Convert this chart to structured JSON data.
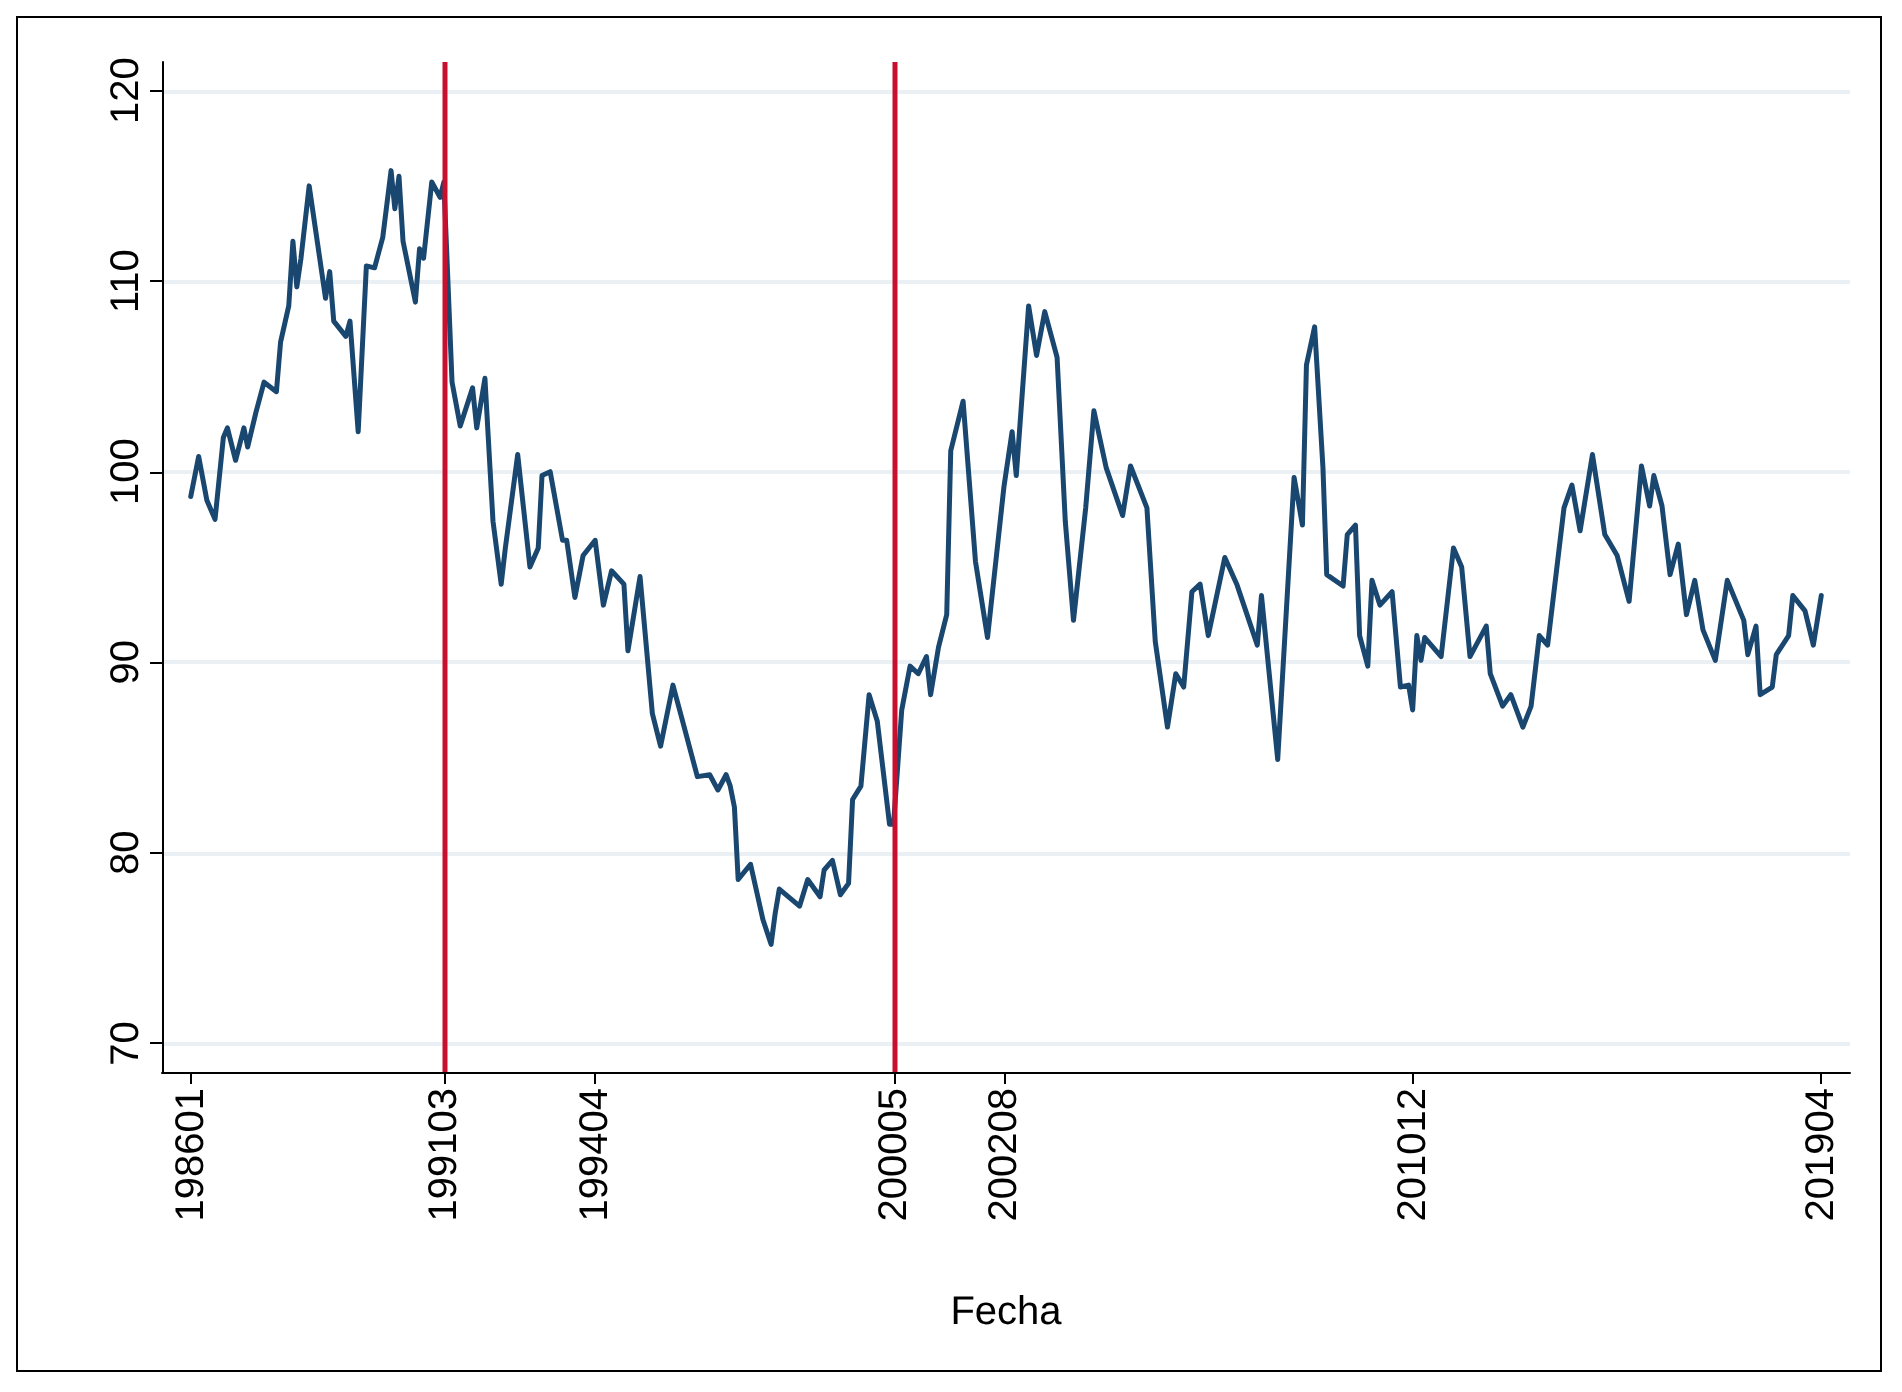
{
  "chart_data": {
    "type": "line",
    "xlabel": "Fecha",
    "x": [
      "1986-01",
      "1986-03",
      "1986-05",
      "1986-07",
      "1986-09",
      "1986-10",
      "1986-12",
      "1987-02",
      "1987-03",
      "1987-05",
      "1987-07",
      "1987-10",
      "1987-11",
      "1988-01",
      "1988-02",
      "1988-03",
      "1988-04",
      "1988-06",
      "1988-10",
      "1988-11",
      "1988-12",
      "1989-03",
      "1989-04",
      "1989-06",
      "1989-08",
      "1989-10",
      "1989-12",
      "1990-02",
      "1990-03",
      "1990-04",
      "1990-05",
      "1990-08",
      "1990-09",
      "1990-10",
      "1990-12",
      "1991-02",
      "1991-03",
      "1991-05",
      "1991-07",
      "1991-10",
      "1991-11",
      "1992-01",
      "1992-03",
      "1992-05",
      "1992-06",
      "1992-09",
      "1992-12",
      "1993-02",
      "1993-03",
      "1993-05",
      "1993-08",
      "1993-09",
      "1993-11",
      "1994-01",
      "1994-04",
      "1994-06",
      "1994-08",
      "1994-11",
      "1994-12",
      "1995-03",
      "1995-06",
      "1995-08",
      "1995-11",
      "1996-01",
      "1996-05",
      "1996-08",
      "1996-10",
      "1996-12",
      "1997-01",
      "1997-02",
      "1997-03",
      "1997-06",
      "1997-09",
      "1997-11",
      "1997-12",
      "1998-01",
      "1998-06",
      "1998-08",
      "1998-11",
      "1998-12",
      "1999-02",
      "1999-04",
      "1999-06",
      "1999-07",
      "1999-09",
      "1999-11",
      "2000-01",
      "2000-04",
      "2000-05",
      "2000-07",
      "2000-09",
      "2000-11",
      "2001-01",
      "2001-02",
      "2001-04",
      "2001-06",
      "2001-07",
      "2001-10",
      "2002-01",
      "2002-04",
      "2002-08",
      "2002-10",
      "2002-11",
      "2003-02",
      "2003-04",
      "2003-06",
      "2003-09",
      "2003-11",
      "2004-01",
      "2004-04",
      "2004-06",
      "2004-09",
      "2005-01",
      "2005-03",
      "2005-07",
      "2005-09",
      "2005-12",
      "2006-02",
      "2006-04",
      "2006-06",
      "2006-08",
      "2006-10",
      "2007-02",
      "2007-05",
      "2007-10",
      "2007-11",
      "2008-03",
      "2008-07",
      "2008-09",
      "2008-10",
      "2008-12",
      "2009-02",
      "2009-03",
      "2009-07",
      "2009-08",
      "2009-10",
      "2009-11",
      "2010-01",
      "2010-02",
      "2010-04",
      "2010-07",
      "2010-09",
      "2010-11",
      "2010-12",
      "2011-01",
      "2011-02",
      "2011-03",
      "2011-07",
      "2011-10",
      "2011-12",
      "2012-02",
      "2012-06",
      "2012-07",
      "2012-10",
      "2012-12",
      "2013-03",
      "2013-05",
      "2013-07",
      "2013-09",
      "2014-01",
      "2014-03",
      "2014-05",
      "2014-08",
      "2014-11",
      "2015-02",
      "2015-05",
      "2015-08",
      "2015-10",
      "2015-11",
      "2016-01",
      "2016-03",
      "2016-05",
      "2016-07",
      "2016-09",
      "2016-11",
      "2017-02",
      "2017-05",
      "2017-09",
      "2017-10",
      "2017-12",
      "2018-01",
      "2018-04",
      "2018-05",
      "2018-08",
      "2018-09",
      "2018-12",
      "2019-02",
      "2019-04"
    ],
    "series": [
      {
        "color": "#1a476f",
        "values": [
          98.7,
          100.8,
          98.5,
          97.5,
          101.8,
          102.3,
          100.6,
          102.3,
          101.3,
          103.1,
          104.7,
          104.2,
          106.8,
          108.7,
          112.1,
          109.7,
          111.2,
          115.0,
          109.1,
          110.5,
          107.9,
          107.1,
          107.9,
          102.1,
          110.8,
          110.7,
          112.3,
          115.8,
          113.8,
          115.5,
          112.1,
          108.9,
          111.7,
          111.2,
          115.2,
          114.4,
          115.2,
          104.7,
          102.4,
          104.4,
          102.3,
          104.9,
          97.4,
          94.1,
          96.0,
          100.9,
          95.0,
          96.0,
          99.8,
          100.0,
          96.4,
          96.4,
          93.4,
          95.6,
          96.4,
          93.0,
          94.8,
          94.1,
          90.6,
          94.5,
          87.3,
          85.6,
          88.8,
          87.2,
          84.0,
          84.1,
          83.3,
          84.1,
          83.5,
          82.4,
          78.6,
          79.4,
          76.5,
          75.2,
          76.8,
          78.1,
          77.2,
          78.6,
          77.7,
          79.1,
          79.6,
          77.8,
          78.4,
          82.8,
          83.5,
          88.3,
          86.9,
          81.5,
          81.5,
          87.5,
          89.8,
          89.4,
          90.3,
          88.3,
          90.8,
          92.5,
          101.1,
          103.7,
          95.3,
          91.3,
          99.2,
          102.1,
          99.8,
          108.7,
          106.1,
          108.4,
          106.0,
          97.4,
          92.2,
          98.1,
          103.2,
          100.2,
          97.7,
          100.3,
          98.1,
          91.1,
          86.6,
          89.4,
          88.7,
          93.7,
          94.1,
          91.4,
          95.5,
          94.1,
          90.9,
          93.5,
          84.9,
          99.7,
          97.2,
          105.6,
          107.6,
          100.2,
          94.6,
          94.0,
          96.7,
          97.2,
          91.4,
          89.8,
          94.3,
          93.0,
          93.7,
          88.7,
          88.8,
          87.5,
          91.4,
          90.1,
          91.3,
          90.3,
          96.0,
          95.0,
          90.3,
          91.9,
          89.4,
          87.7,
          88.3,
          86.6,
          87.7,
          91.4,
          90.9,
          98.1,
          99.3,
          96.9,
          100.9,
          96.7,
          95.6,
          93.2,
          100.3,
          98.2,
          99.8,
          98.2,
          94.6,
          96.2,
          92.5,
          94.3,
          91.7,
          90.1,
          94.3,
          92.2,
          90.4,
          91.9,
          88.3,
          88.7,
          90.4,
          91.4,
          93.5,
          92.7,
          90.9,
          93.5
        ]
      }
    ],
    "xlim": [
      "1985-06",
      "2019-11"
    ],
    "xticks": [
      {
        "value": "1986-01",
        "label": "198601"
      },
      {
        "value": "1991-03",
        "label": "199103"
      },
      {
        "value": "1994-04",
        "label": "199404"
      },
      {
        "value": "2000-05",
        "label": "200005"
      },
      {
        "value": "2002-08",
        "label": "200208"
      },
      {
        "value": "2010-12",
        "label": "201012"
      },
      {
        "value": "2019-04",
        "label": "201904"
      }
    ],
    "ylim": [
      68.5,
      121.5
    ],
    "yticks": [
      70,
      80,
      90,
      100,
      110,
      120
    ],
    "ref_lines": [
      {
        "axis": "x",
        "value": "1991-03",
        "color": "#c8102e"
      },
      {
        "axis": "x",
        "value": "2000-05",
        "color": "#c8102e"
      }
    ],
    "grid": "y",
    "marker": "none",
    "line_style": "solid"
  }
}
